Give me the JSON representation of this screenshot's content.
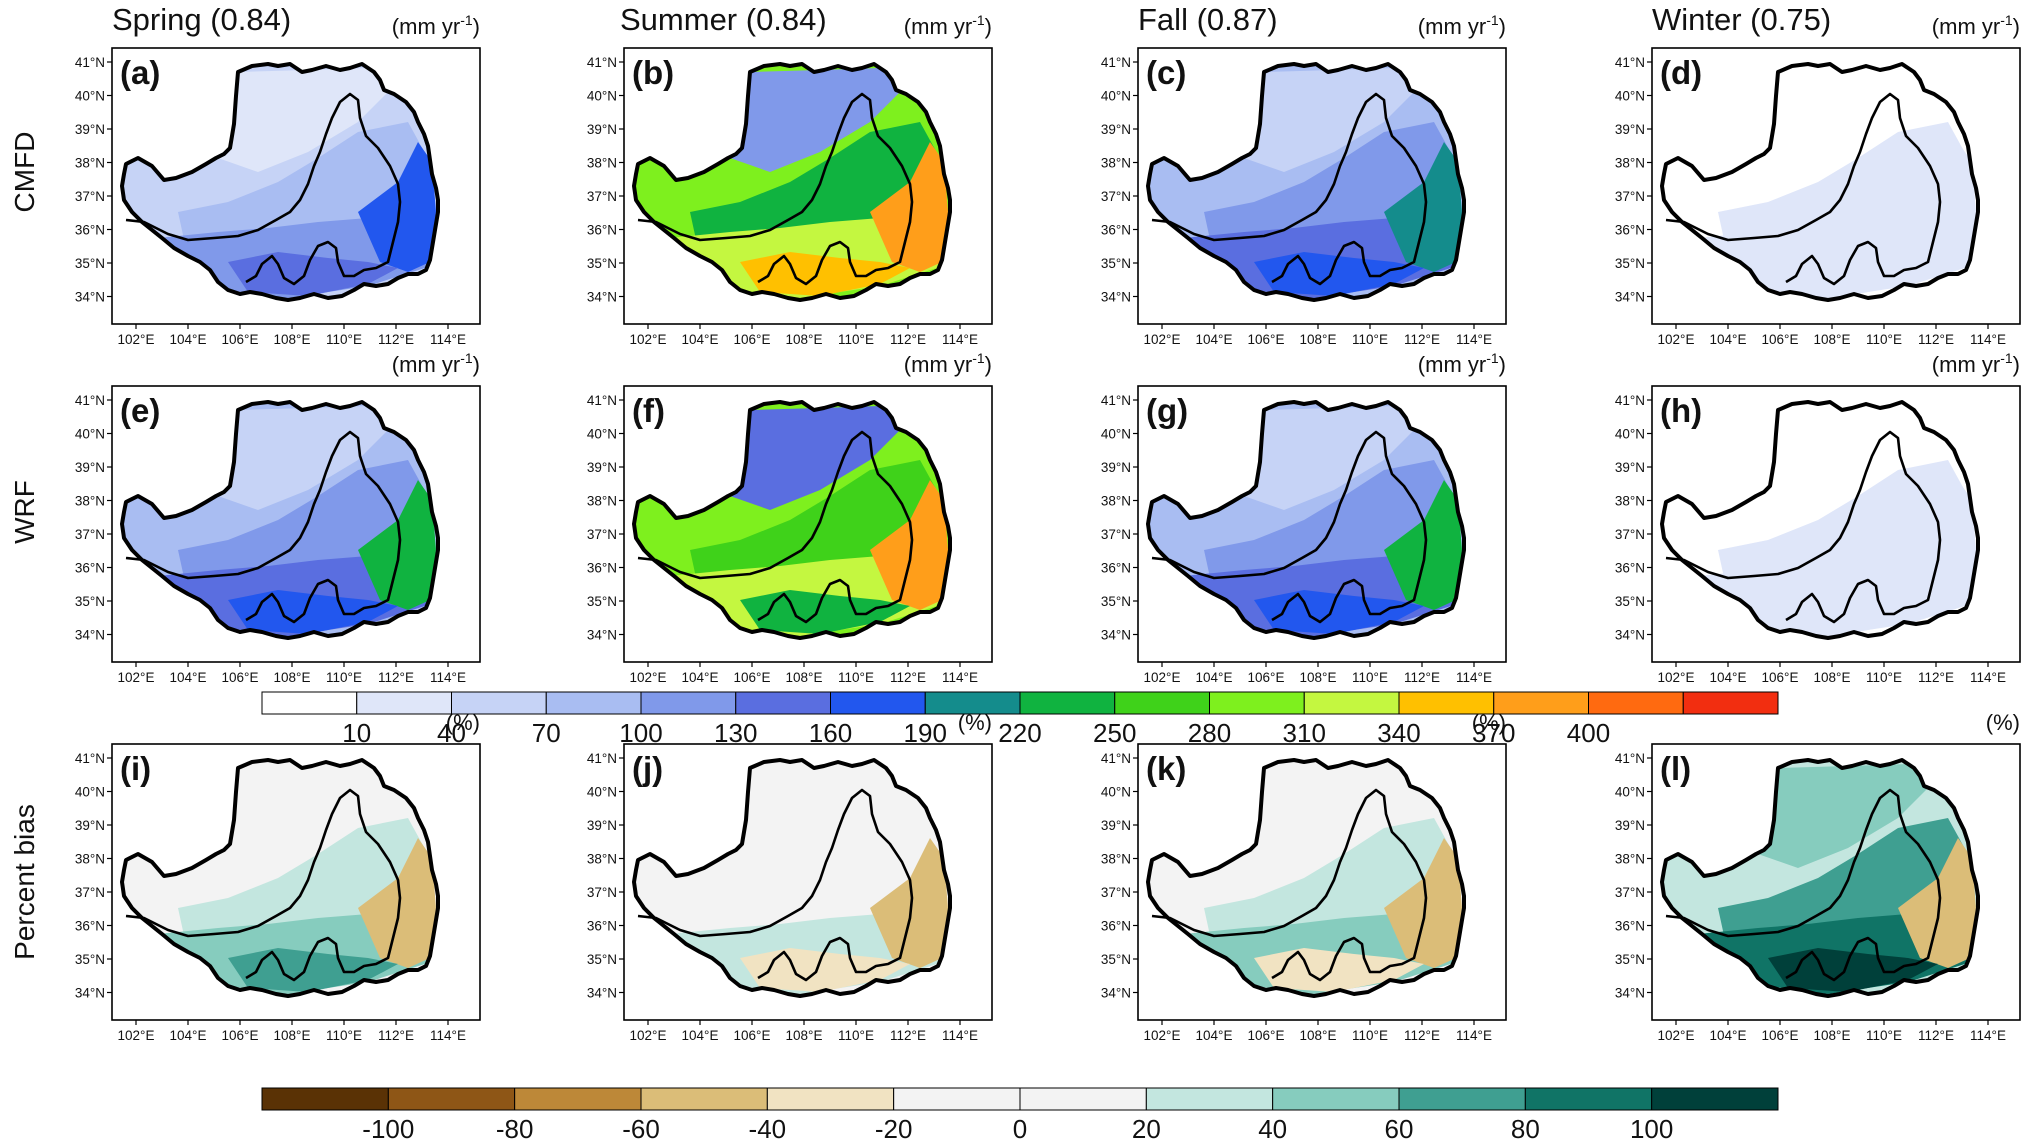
{
  "seasons": [
    {
      "title": "Spring (0.84)"
    },
    {
      "title": "Summer (0.84)"
    },
    {
      "title": "Fall (0.87)"
    },
    {
      "title": "Winter (0.75)"
    }
  ],
  "rows": [
    {
      "label": "CMFD",
      "unit_text": "(mm yr",
      "unit_sup": "-1",
      "unit_close": ")"
    },
    {
      "label": "WRF",
      "unit_text": "(mm yr",
      "unit_sup": "-1",
      "unit_close": ")"
    },
    {
      "label": "Percent bias",
      "unit_text": "(%)",
      "unit_sup": "",
      "unit_close": ""
    }
  ],
  "panel_labels": [
    "(a)",
    "(b)",
    "(c)",
    "(d)",
    "(e)",
    "(f)",
    "(g)",
    "(h)",
    "(i)",
    "(j)",
    "(k)",
    "(l)"
  ],
  "lat_ticks": [
    "41°N",
    "40°N",
    "39°N",
    "38°N",
    "37°N",
    "36°N",
    "35°N",
    "34°N"
  ],
  "lon_ticks": [
    "102°E",
    "104°E",
    "106°E",
    "108°E",
    "110°E",
    "112°E",
    "114°E"
  ],
  "precip_colorbar": {
    "labels": [
      "10",
      "40",
      "70",
      "100",
      "130",
      "160",
      "190",
      "220",
      "250",
      "280",
      "310",
      "340",
      "370",
      "400"
    ],
    "colors": [
      "#ffffff",
      "#dfe6f9",
      "#c6d3f6",
      "#a9bdf2",
      "#8099ea",
      "#5a6ee0",
      "#2257ee",
      "#148c8c",
      "#10b340",
      "#3fd21a",
      "#7ef01e",
      "#c4f740",
      "#ffc000",
      "#ff9e1a",
      "#ff6a10",
      "#f22e10"
    ]
  },
  "bias_colorbar": {
    "labels": [
      "-100",
      "-80",
      "-60",
      "-40",
      "-20",
      "0",
      "20",
      "40",
      "60",
      "80",
      "100"
    ],
    "colors": [
      "#5a3205",
      "#8e5616",
      "#bd8838",
      "#dbbd78",
      "#f1e3c2",
      "#f3f3f3",
      "#f3f3f3",
      "#c3e6df",
      "#86ccbe",
      "#3f9f91",
      "#107466",
      "#00403a"
    ]
  },
  "map_fills": {
    "spring_cmfd": {
      "base": "#c6d3f6",
      "light": "#dfe6f9",
      "mid": "#a9bdf2",
      "south": "#8099ea",
      "deep": "#5a6ee0",
      "hot": "#2257ee"
    },
    "summer_cmfd": {
      "base": "#7ef01e",
      "light": "#8099ea",
      "mid": "#10b340",
      "south": "#c4f740",
      "deep": "#ffc000",
      "hot": "#ff9e1a"
    },
    "fall_cmfd": {
      "base": "#a9bdf2",
      "light": "#c6d3f6",
      "mid": "#8099ea",
      "south": "#5a6ee0",
      "deep": "#2257ee",
      "hot": "#148c8c"
    },
    "winter_cmfd": {
      "base": "#ffffff",
      "light": "#ffffff",
      "mid": "#dfe6f9",
      "south": "#dfe6f9",
      "deep": "#dfe6f9",
      "hot": "#dfe6f9"
    },
    "spring_wrf": {
      "base": "#a9bdf2",
      "light": "#c6d3f6",
      "mid": "#8099ea",
      "south": "#5a6ee0",
      "deep": "#2257ee",
      "hot": "#10b340"
    },
    "summer_wrf": {
      "base": "#7ef01e",
      "light": "#5a6ee0",
      "mid": "#3fd21a",
      "south": "#c4f740",
      "deep": "#10b340",
      "hot": "#ff9e1a"
    },
    "fall_wrf": {
      "base": "#a9bdf2",
      "light": "#c6d3f6",
      "mid": "#8099ea",
      "south": "#5a6ee0",
      "deep": "#2257ee",
      "hot": "#10b340"
    },
    "winter_wrf": {
      "base": "#ffffff",
      "light": "#ffffff",
      "mid": "#dfe6f9",
      "south": "#dfe6f9",
      "deep": "#dfe6f9",
      "hot": "#dfe6f9"
    },
    "spring_bias": {
      "base": "#f3f3f3",
      "light": "#f3f3f3",
      "mid": "#c3e6df",
      "south": "#86ccbe",
      "deep": "#3f9f91",
      "hot": "#dbbd78"
    },
    "summer_bias": {
      "base": "#f3f3f3",
      "light": "#f3f3f3",
      "mid": "#f3f3f3",
      "south": "#c3e6df",
      "deep": "#f1e3c2",
      "hot": "#dbbd78"
    },
    "fall_bias": {
      "base": "#f3f3f3",
      "light": "#f3f3f3",
      "mid": "#c3e6df",
      "south": "#86ccbe",
      "deep": "#f1e3c2",
      "hot": "#dbbd78"
    },
    "winter_bias": {
      "base": "#c3e6df",
      "light": "#86ccbe",
      "mid": "#3f9f91",
      "south": "#107466",
      "deep": "#00403a",
      "hot": "#dbbd78"
    }
  }
}
